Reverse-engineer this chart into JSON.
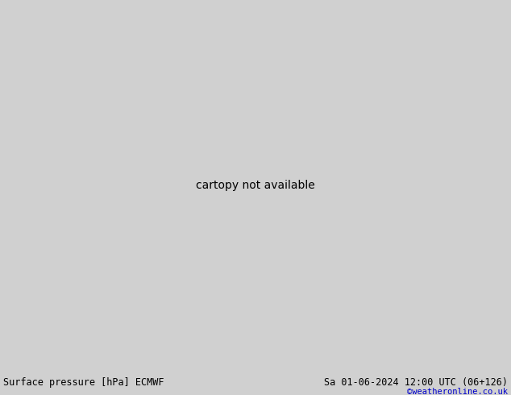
{
  "title_left": "Surface pressure [hPa] ECMWF",
  "title_right": "Sa 01-06-2024 12:00 UTC (06+126)",
  "credit": "©weatheronline.co.uk",
  "bg_color": "#d0d0d0",
  "land_color": "#b5e8a0",
  "sea_color": "#d0d0d0",
  "border_color": "#1a1a1a",
  "isobar_red_color": "#dd0000",
  "isobar_black_color": "#000000",
  "isobar_blue_color": "#0000cc",
  "bottom_bar_color": "#e0e0e0",
  "bottom_text_color": "#000000",
  "credit_color": "#0000cc",
  "lon_min": -5,
  "lon_max": 35,
  "lat_min": 52,
  "lat_max": 72,
  "figsize": [
    6.34,
    4.9
  ],
  "dpi": 100
}
